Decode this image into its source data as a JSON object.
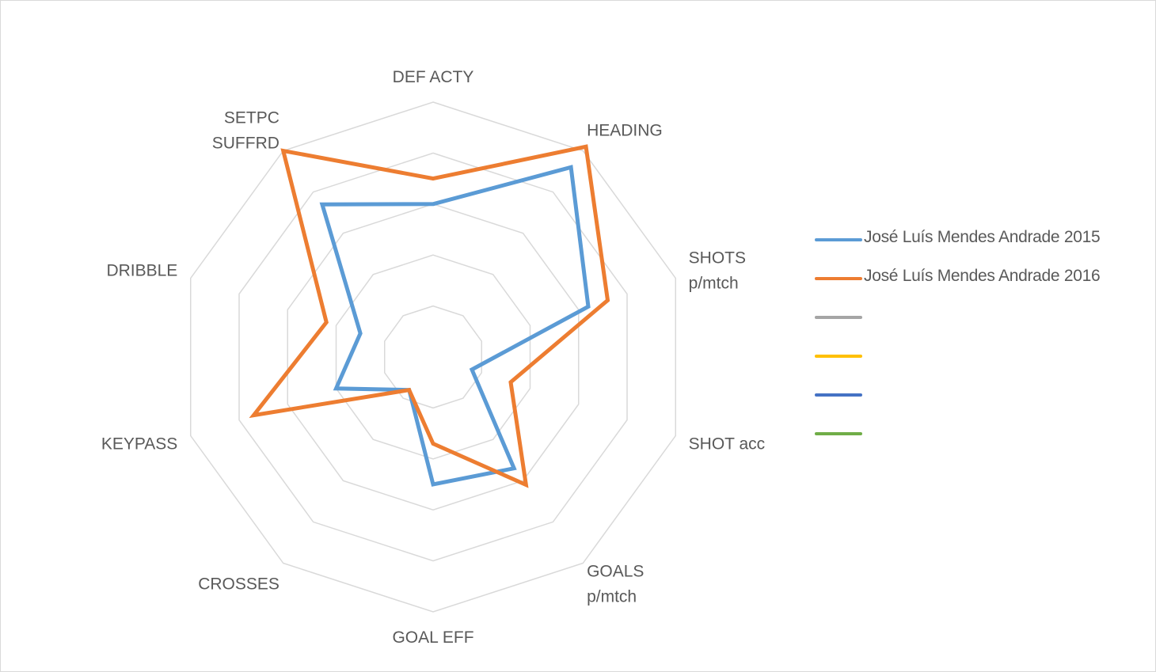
{
  "chart_data": {
    "type": "radar",
    "axes": [
      "DEF ACTY",
      "HEADING",
      "SHOTS p/mtch",
      "SHOT acc",
      "GOALS p/mtch",
      "GOAL EFF",
      "CROSSES",
      "KEYPASS",
      "DRIBBLE",
      "SETPC SUFFRD"
    ],
    "axis_label_lines": [
      [
        "DEF ACTY"
      ],
      [
        "HEADING"
      ],
      [
        "SHOTS",
        "p/mtch"
      ],
      [
        "SHOT acc"
      ],
      [
        "GOALS",
        "p/mtch"
      ],
      [
        "GOAL EFF"
      ],
      [
        "CROSSES"
      ],
      [
        "KEYPASS"
      ],
      [
        "DRIBBLE"
      ],
      [
        "SETPC",
        "SUFFRD"
      ]
    ],
    "range": [
      0,
      5
    ],
    "gridline_count": 5,
    "grid": true,
    "legend_position": "right",
    "series": [
      {
        "name": "José Luís Mendes Andrade 2015",
        "color": "#5b9bd5",
        "values": [
          3.0,
          4.6,
          3.2,
          0.8,
          2.7,
          2.5,
          0.8,
          2.0,
          1.5,
          3.7
        ]
      },
      {
        "name": "José Luís Mendes Andrade 2016",
        "color": "#ed7d31",
        "values": [
          3.5,
          5.1,
          3.6,
          1.6,
          3.1,
          1.7,
          0.8,
          3.7,
          2.2,
          5.0
        ]
      },
      {
        "name": "",
        "color": "#a5a5a5",
        "values": []
      },
      {
        "name": "",
        "color": "#ffc000",
        "values": []
      },
      {
        "name": "",
        "color": "#4472c4",
        "values": []
      },
      {
        "name": "",
        "color": "#70ad47",
        "values": []
      }
    ]
  }
}
